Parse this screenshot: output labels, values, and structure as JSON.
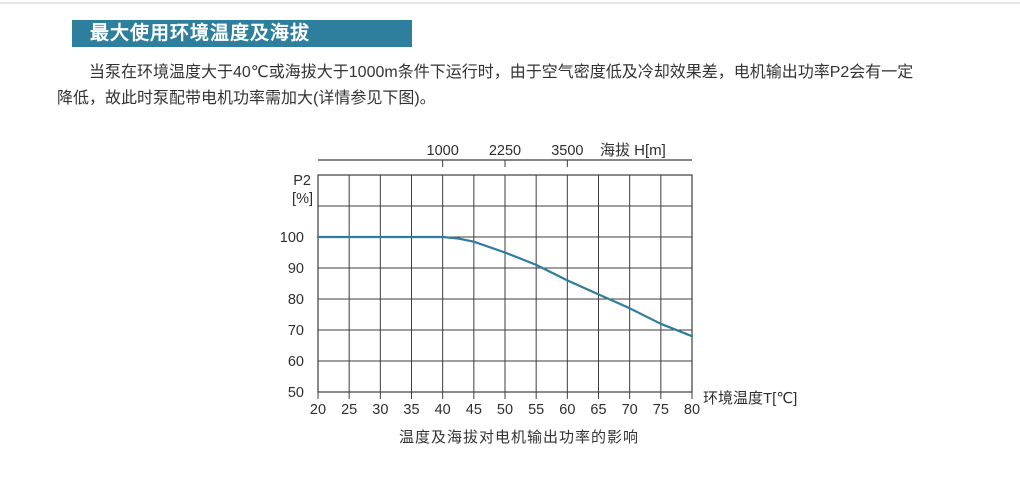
{
  "header": {
    "title": "最大使用环境温度及海拔"
  },
  "paragraph": {
    "lines": [
      "当泵在环境温度大于40℃或海拔大于1000m条件下运行时，由于空气密度低及冷却效果差，电机输出功率P2会有一定",
      "降低，故此时泵配带电机功率需加大(详情参见下图)。"
    ]
  },
  "colors": {
    "accent_teal": "#2e7f9e",
    "curve": "#2e7d9c",
    "grid": "#3d3d3d",
    "text": "#333333"
  },
  "chart_data": {
    "type": "line",
    "title": "温度及海拔对电机输出功率的影响",
    "grid": true,
    "legend": false,
    "x_axis": {
      "label": "环境温度T[℃]",
      "range": [
        20,
        80
      ],
      "ticks": [
        20,
        25,
        30,
        35,
        40,
        45,
        50,
        55,
        60,
        65,
        70,
        75,
        80
      ]
    },
    "y_axis": {
      "label": [
        "P2",
        "[%]"
      ],
      "range": [
        50,
        120
      ],
      "gridline_step": 10,
      "tick_labels": [
        100,
        90,
        80,
        70,
        60,
        50
      ]
    },
    "top_axis": {
      "label": "海拔 H[m]",
      "ticks": [
        {
          "label": "1000",
          "at_x": 40
        },
        {
          "label": "2250",
          "at_x": 50
        },
        {
          "label": "3500",
          "at_x": 60
        }
      ]
    },
    "series": [
      {
        "name": "电机输出功率P2",
        "color": "#2e7d9c",
        "points": [
          [
            20,
            100
          ],
          [
            25,
            100
          ],
          [
            30,
            100
          ],
          [
            35,
            100
          ],
          [
            40,
            100
          ],
          [
            42.5,
            99.5
          ],
          [
            45,
            98.5
          ],
          [
            50,
            95
          ],
          [
            55,
            91
          ],
          [
            60,
            86
          ],
          [
            65,
            81.5
          ],
          [
            70,
            77
          ],
          [
            75,
            72
          ],
          [
            80,
            68
          ]
        ]
      }
    ]
  }
}
